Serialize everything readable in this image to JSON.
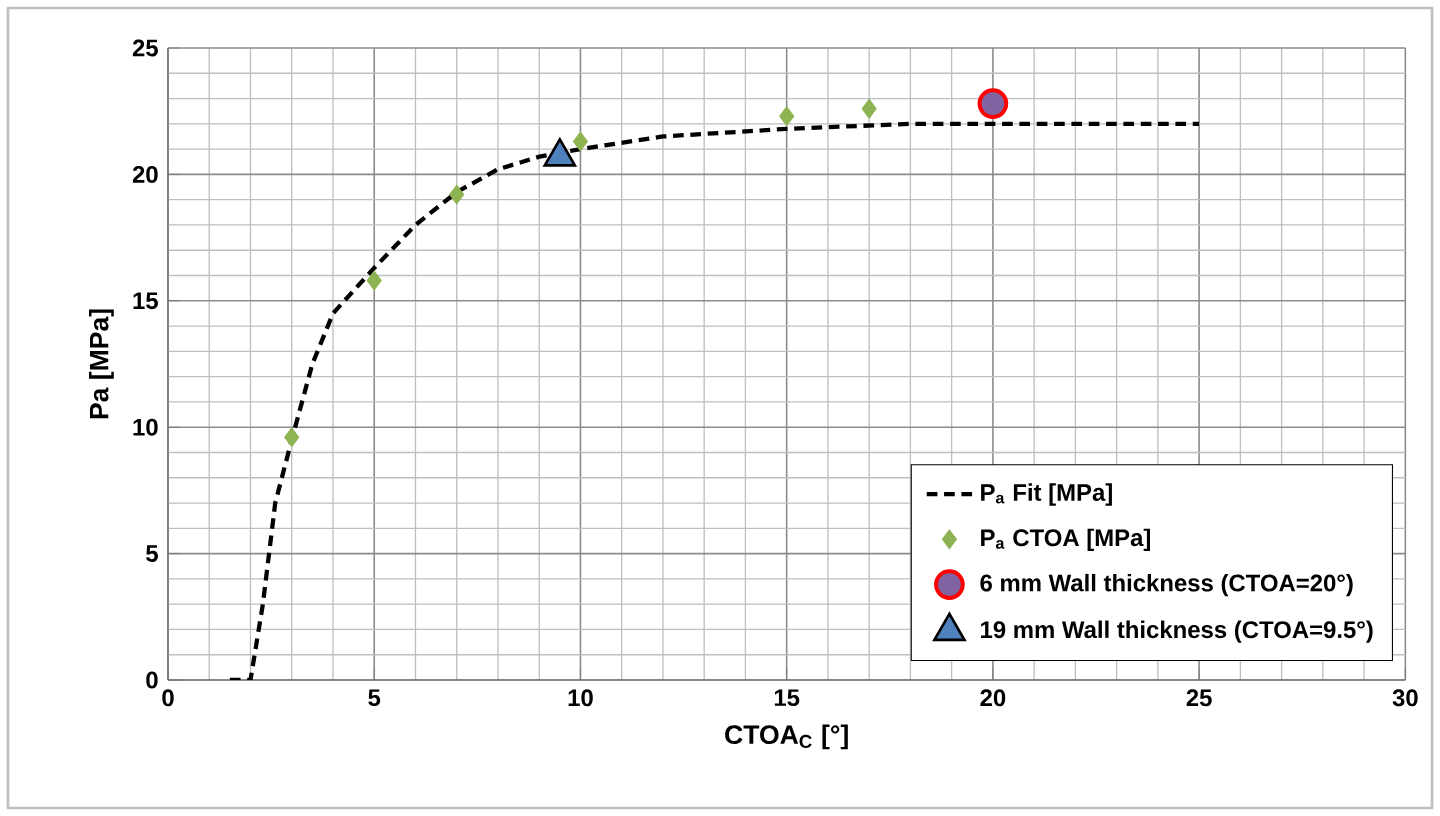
{
  "chart_data": {
    "type": "scatter",
    "xlabel": "CTOA$_{C}$ [°]",
    "ylabel": "Pa [MPa]",
    "xlim": [
      0,
      30
    ],
    "ylim": [
      0,
      25
    ],
    "xticks": [
      0,
      5,
      10,
      15,
      20,
      25,
      30
    ],
    "yticks": [
      0,
      5,
      10,
      15,
      20,
      25
    ],
    "grid": true,
    "legend": "bottom right",
    "series": [
      {
        "name": "P$_{a}$ Fit  [MPa]",
        "type": "line",
        "line_style": "dashed",
        "marker": "none",
        "color": "#000000",
        "x": [
          1.5,
          2,
          2.3,
          2.6,
          3,
          3.5,
          4,
          5,
          6,
          7,
          8,
          9,
          10,
          12,
          15,
          18,
          20,
          25
        ],
        "values": [
          0,
          0,
          3,
          7,
          9.5,
          12.5,
          14.5,
          16.3,
          18,
          19.3,
          20.2,
          20.7,
          21,
          21.5,
          21.8,
          22,
          22,
          22
        ]
      },
      {
        "name": "P$_{a}$ CTOA  [MPa]",
        "marker": "diamond",
        "color": "#8db352",
        "x": [
          3,
          5,
          7,
          10,
          15,
          17
        ],
        "values": [
          9.6,
          15.8,
          19.2,
          21.3,
          22.3,
          22.6
        ]
      },
      {
        "name": "6 mm Wall thickness (CTOA=20°)",
        "marker": "circle",
        "color": "#8064a2",
        "x": [
          20
        ],
        "values": [
          22.8
        ]
      },
      {
        "name": "19 mm Wall thickness (CTOA=9.5°)",
        "marker": "triangle",
        "color": "#4f81bd",
        "x": [
          9.5
        ],
        "values": [
          20.7
        ]
      }
    ]
  }
}
